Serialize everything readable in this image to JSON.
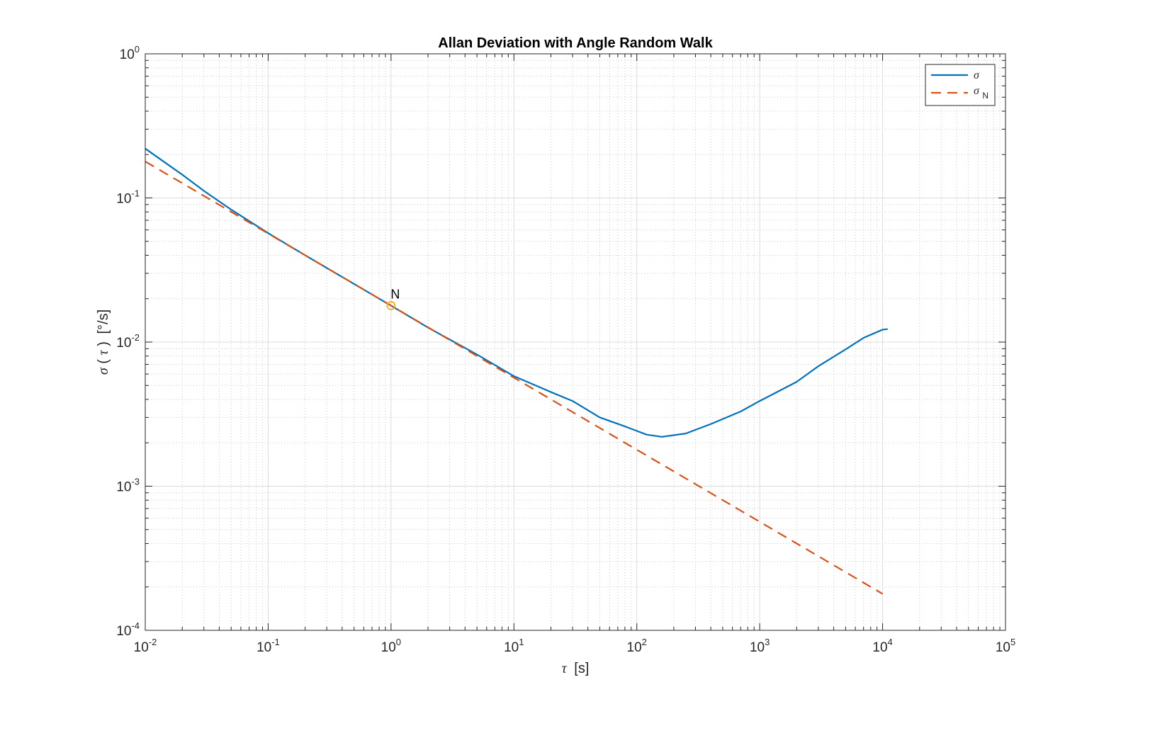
{
  "chart_data": {
    "type": "line",
    "title": "Allan Deviation with Angle Random Walk",
    "xlabel": {
      "symbol": "τ",
      "unit": "[s]"
    },
    "ylabel": {
      "symbol": "σ",
      "arg": "τ",
      "unit": "[°/s]"
    },
    "x_scale": "log",
    "y_scale": "log",
    "xlim": [
      0.01,
      100000
    ],
    "ylim": [
      0.0001,
      1
    ],
    "x_ticks": [
      {
        "base": "10",
        "exp": "-2",
        "value": 0.01
      },
      {
        "base": "10",
        "exp": "-1",
        "value": 0.1
      },
      {
        "base": "10",
        "exp": "0",
        "value": 1
      },
      {
        "base": "10",
        "exp": "1",
        "value": 10
      },
      {
        "base": "10",
        "exp": "2",
        "value": 100
      },
      {
        "base": "10",
        "exp": "3",
        "value": 1000
      },
      {
        "base": "10",
        "exp": "4",
        "value": 10000
      },
      {
        "base": "10",
        "exp": "5",
        "value": 100000
      }
    ],
    "y_ticks": [
      {
        "base": "10",
        "exp": "-4",
        "value": 0.0001
      },
      {
        "base": "10",
        "exp": "-3",
        "value": 0.001
      },
      {
        "base": "10",
        "exp": "-2",
        "value": 0.01
      },
      {
        "base": "10",
        "exp": "-1",
        "value": 0.1
      },
      {
        "base": "10",
        "exp": "0",
        "value": 1
      }
    ],
    "grid": "major-and-minor",
    "legend_position": "top-right",
    "series": [
      {
        "name": "σ",
        "subscript": "",
        "style": "solid",
        "color": "#0072BD",
        "points": [
          [
            0.01,
            0.22
          ],
          [
            0.02,
            0.145
          ],
          [
            0.03,
            0.112
          ],
          [
            0.05,
            0.083
          ],
          [
            0.1,
            0.057
          ],
          [
            0.2,
            0.04
          ],
          [
            0.5,
            0.0253
          ],
          [
            1,
            0.0179
          ],
          [
            2,
            0.0126
          ],
          [
            5,
            0.0082
          ],
          [
            10,
            0.0058
          ],
          [
            20,
            0.0045
          ],
          [
            30,
            0.0039
          ],
          [
            50,
            0.003
          ],
          [
            80,
            0.0026
          ],
          [
            120,
            0.00228
          ],
          [
            160,
            0.0022
          ],
          [
            250,
            0.00232
          ],
          [
            400,
            0.0027
          ],
          [
            700,
            0.0033
          ],
          [
            1000,
            0.0039
          ],
          [
            2000,
            0.0053
          ],
          [
            3000,
            0.0068
          ],
          [
            5000,
            0.0089
          ],
          [
            7000,
            0.0107
          ],
          [
            10000,
            0.0122
          ],
          [
            11000,
            0.0123
          ]
        ]
      },
      {
        "name": "σ",
        "subscript": "N",
        "style": "dashed",
        "color": "#D95319",
        "points": [
          [
            0.01,
            0.179
          ],
          [
            10000,
            0.000179
          ]
        ]
      }
    ],
    "annotations": [
      {
        "text": "N",
        "x": 1,
        "y": 0.0179,
        "marker": "circle",
        "marker_color": "#EDB120"
      }
    ]
  }
}
